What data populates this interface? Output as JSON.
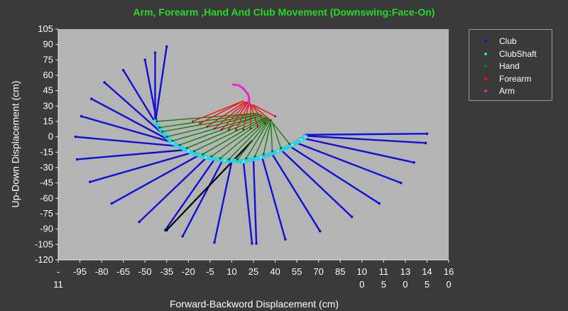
{
  "chart_data": {
    "type": "line",
    "title": "Arm, Forearm ,Hand And Club Movement (Downswing:Face-On)",
    "xlabel": "Forward-Backword Displacement (cm)",
    "ylabel": "Up-Down Displacement (cm)",
    "xlim": [
      -110,
      160
    ],
    "ylim": [
      -120,
      105
    ],
    "y_ticks": [
      105,
      90,
      75,
      60,
      45,
      30,
      15,
      0,
      -15,
      -30,
      -45,
      -60,
      -75,
      -90,
      -105,
      -120
    ],
    "x_ticks": [
      {
        "value": -110,
        "lines": [
          "-",
          "11"
        ]
      },
      {
        "value": -95,
        "lines": [
          "-95"
        ]
      },
      {
        "value": -80,
        "lines": [
          "-80"
        ]
      },
      {
        "value": -65,
        "lines": [
          "-65"
        ]
      },
      {
        "value": -50,
        "lines": [
          "-50"
        ]
      },
      {
        "value": -35,
        "lines": [
          "-35"
        ]
      },
      {
        "value": -20,
        "lines": [
          "-20"
        ]
      },
      {
        "value": -5,
        "lines": [
          "-5"
        ]
      },
      {
        "value": 10,
        "lines": [
          "10"
        ]
      },
      {
        "value": 25,
        "lines": [
          "25"
        ]
      },
      {
        "value": 40,
        "lines": [
          "40"
        ]
      },
      {
        "value": 55,
        "lines": [
          "55"
        ]
      },
      {
        "value": 70,
        "lines": [
          "70"
        ]
      },
      {
        "value": 85,
        "lines": [
          "85"
        ]
      },
      {
        "value": 100,
        "lines": [
          "10",
          "0"
        ]
      },
      {
        "value": 115,
        "lines": [
          "11",
          "5"
        ]
      },
      {
        "value": 130,
        "lines": [
          "13",
          "0"
        ]
      },
      {
        "value": 145,
        "lines": [
          "14",
          "5"
        ]
      },
      {
        "value": 160,
        "lines": [
          "16",
          "0"
        ]
      }
    ],
    "legend_position": "outside-top-right",
    "grid": false,
    "colors": {
      "club": "#1010d8",
      "clubshaft": "#30d0e0",
      "hand": "#108010",
      "forearm": "#ee1111",
      "arm": "#ee22cc",
      "highlight_shaft": "#000000",
      "plot_bg": "#b4b4b4"
    },
    "legend": [
      {
        "name": "Club",
        "color": "#1010d8"
      },
      {
        "name": "ClubShaft",
        "color": "#30d0e0"
      },
      {
        "name": "Hand",
        "color": "#108010"
      },
      {
        "name": "Forearm",
        "color": "#ee1111"
      },
      {
        "name": "Arm",
        "color": "#ee22cc"
      }
    ],
    "club_lines": [
      [
        [
          -43,
          13
        ],
        [
          -35,
          88
        ]
      ],
      [
        [
          -43,
          13
        ],
        [
          -43,
          82
        ]
      ],
      [
        [
          -41,
          9
        ],
        [
          -50,
          75
        ]
      ],
      [
        [
          -39,
          5
        ],
        [
          -65,
          65
        ]
      ],
      [
        [
          -37,
          2
        ],
        [
          -78,
          53
        ]
      ],
      [
        [
          -35,
          -2
        ],
        [
          -87,
          37
        ]
      ],
      [
        [
          -32,
          -5
        ],
        [
          -94,
          20
        ]
      ],
      [
        [
          -28,
          -9
        ],
        [
          -98,
          0
        ]
      ],
      [
        [
          -24,
          -13
        ],
        [
          -97,
          -22
        ]
      ],
      [
        [
          -19,
          -16
        ],
        [
          -88,
          -44
        ]
      ],
      [
        [
          -14,
          -19
        ],
        [
          -73,
          -65
        ]
      ],
      [
        [
          -8,
          -21
        ],
        [
          -54,
          -83
        ]
      ],
      [
        [
          -2,
          -22
        ],
        [
          -36,
          -91
        ]
      ],
      [
        [
          4,
          -22
        ],
        [
          -24,
          -97
        ]
      ],
      [
        [
          10,
          -24
        ],
        [
          -2,
          -103
        ]
      ],
      [
        [
          18,
          -23
        ],
        [
          24,
          -104
        ]
      ],
      [
        [
          25,
          -22
        ],
        [
          27,
          -104
        ]
      ],
      [
        [
          31,
          -20
        ],
        [
          47,
          -100
        ]
      ],
      [
        [
          38,
          -17
        ],
        [
          71,
          -92
        ]
      ],
      [
        [
          45,
          -14
        ],
        [
          93,
          -78
        ]
      ],
      [
        [
          51,
          -10
        ],
        [
          112,
          -65
        ]
      ],
      [
        [
          55,
          -6
        ],
        [
          127,
          -45
        ]
      ],
      [
        [
          58,
          -1
        ],
        [
          136,
          -25
        ]
      ],
      [
        [
          60,
          1
        ],
        [
          144,
          -6
        ]
      ],
      [
        [
          61,
          2
        ],
        [
          145,
          3
        ]
      ]
    ],
    "highlight_shaft": [
      [
        24,
        -4
      ],
      [
        -35,
        -91
      ]
    ],
    "clubshaft_path": [
      [
        -43,
        15
      ],
      [
        -38,
        5
      ],
      [
        -31,
        -6
      ],
      [
        -20,
        -14
      ],
      [
        -8,
        -20
      ],
      [
        5,
        -23
      ],
      [
        18,
        -24
      ],
      [
        30,
        -20
      ],
      [
        42,
        -14
      ],
      [
        52,
        -8
      ],
      [
        58,
        -3
      ],
      [
        61,
        0
      ]
    ],
    "hand_lines": [
      [
        [
          -42,
          15
        ],
        [
          28,
          23
        ]
      ],
      [
        [
          -40,
          9
        ],
        [
          28,
          23
        ]
      ],
      [
        [
          -38,
          5
        ],
        [
          29,
          22
        ]
      ],
      [
        [
          -35,
          0
        ],
        [
          30,
          22
        ]
      ],
      [
        [
          -31,
          -4
        ],
        [
          31,
          21
        ]
      ],
      [
        [
          -26,
          -8
        ],
        [
          31,
          21
        ]
      ],
      [
        [
          -21,
          -11
        ],
        [
          32,
          20
        ]
      ],
      [
        [
          -16,
          -14
        ],
        [
          33,
          19
        ]
      ],
      [
        [
          -10,
          -17
        ],
        [
          34,
          19
        ]
      ],
      [
        [
          -4,
          -19
        ],
        [
          34,
          18
        ]
      ],
      [
        [
          2,
          -21
        ],
        [
          35,
          18
        ]
      ],
      [
        [
          8,
          -22
        ],
        [
          35,
          17
        ]
      ],
      [
        [
          14,
          -22
        ],
        [
          36,
          17
        ]
      ],
      [
        [
          20,
          -21
        ],
        [
          36,
          16
        ]
      ],
      [
        [
          26,
          -19
        ],
        [
          37,
          16
        ]
      ],
      [
        [
          32,
          -17
        ],
        [
          37,
          15
        ]
      ],
      [
        [
          38,
          -14
        ],
        [
          37,
          15
        ]
      ],
      [
        [
          44,
          -11
        ],
        [
          38,
          14
        ]
      ],
      [
        [
          50,
          -7
        ],
        [
          38,
          14
        ]
      ]
    ],
    "forearm_lines": [
      [
        [
          -17,
          15
        ],
        [
          18,
          35
        ]
      ],
      [
        [
          -12,
          13
        ],
        [
          18,
          35
        ]
      ],
      [
        [
          -7,
          10
        ],
        [
          19,
          34
        ]
      ],
      [
        [
          -2,
          8
        ],
        [
          20,
          34
        ]
      ],
      [
        [
          3,
          7
        ],
        [
          21,
          34
        ]
      ],
      [
        [
          8,
          7
        ],
        [
          21,
          33
        ]
      ],
      [
        [
          13,
          7
        ],
        [
          22,
          33
        ]
      ],
      [
        [
          18,
          7
        ],
        [
          22,
          33
        ]
      ],
      [
        [
          23,
          8
        ],
        [
          23,
          32
        ]
      ],
      [
        [
          28,
          10
        ],
        [
          23,
          32
        ]
      ],
      [
        [
          33,
          13
        ],
        [
          24,
          31
        ]
      ],
      [
        [
          37,
          16
        ],
        [
          24,
          31
        ]
      ],
      [
        [
          40,
          20
        ],
        [
          25,
          31
        ]
      ]
    ],
    "arm_path": [
      [
        11,
        51
      ],
      [
        15,
        50
      ],
      [
        18,
        47
      ],
      [
        21,
        42
      ],
      [
        22,
        38
      ],
      [
        22,
        34
      ],
      [
        22,
        31
      ]
    ]
  }
}
